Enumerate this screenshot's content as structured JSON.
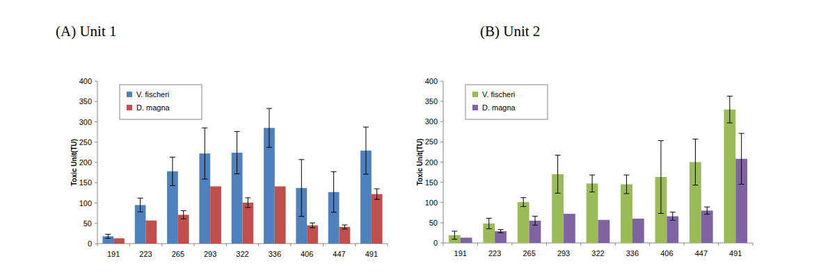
{
  "chart_data": [
    {
      "type": "bar",
      "title": "(A) Unit 1",
      "y_label": "Toxic Unit(TU)",
      "categories": [
        "191",
        "223",
        "265",
        "293",
        "322",
        "336",
        "406",
        "447",
        "491"
      ],
      "series": [
        {
          "name": "V. fischeri",
          "color": "#4f81bd",
          "values": [
            18,
            95,
            178,
            222,
            224,
            285,
            137,
            127,
            229
          ],
          "errors": [
            5,
            17,
            35,
            63,
            52,
            48,
            70,
            50,
            58
          ]
        },
        {
          "name": "D. magna",
          "color": "#c0504d",
          "values": [
            13,
            57,
            71,
            141,
            101,
            141,
            45,
            41,
            122
          ],
          "errors": [
            null,
            null,
            10,
            null,
            12,
            null,
            6,
            5,
            13
          ]
        }
      ],
      "ylim": [
        0,
        400
      ],
      "yticks": [
        0,
        50,
        100,
        150,
        200,
        250,
        300,
        350,
        400
      ],
      "legend": "upper-left",
      "grid": false
    },
    {
      "type": "bar",
      "title": "(B) Unit 2",
      "y_label": "Toxic Unit(TU)",
      "categories": [
        "191",
        "223",
        "265",
        "293",
        "322",
        "336",
        "406",
        "447",
        "491"
      ],
      "series": [
        {
          "name": "V. fischeri",
          "color": "#9bbb59",
          "values": [
            19,
            48,
            101,
            170,
            147,
            145,
            163,
            200,
            330
          ],
          "errors": [
            10,
            13,
            11,
            47,
            21,
            23,
            90,
            57,
            33
          ]
        },
        {
          "name": "D. magna",
          "color": "#8064a2",
          "values": [
            13,
            29,
            55,
            72,
            57,
            60,
            66,
            80,
            208
          ],
          "errors": [
            null,
            4,
            11,
            null,
            null,
            null,
            10,
            9,
            63
          ]
        }
      ],
      "ylim": [
        0,
        400
      ],
      "yticks": [
        0,
        50,
        100,
        150,
        200,
        250,
        300,
        350,
        400
      ],
      "legend": "upper-left",
      "grid": false
    }
  ]
}
